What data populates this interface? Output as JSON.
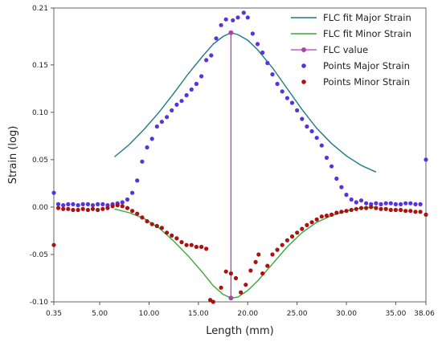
{
  "chart_data": {
    "type": "line",
    "title": "",
    "xlabel": "Length (mm)",
    "ylabel": "Strain (log)",
    "xlim": [
      0.35,
      38.06
    ],
    "ylim": [
      -0.1,
      0.21
    ],
    "grid": false,
    "legend_position": "top-right",
    "x_ticks": [
      {
        "value": 0.35,
        "label": "0.35"
      },
      {
        "value": 5,
        "label": "5.00"
      },
      {
        "value": 10,
        "label": "10.00"
      },
      {
        "value": 15,
        "label": "15.00"
      },
      {
        "value": 20,
        "label": "20.00"
      },
      {
        "value": 25,
        "label": "25.00"
      },
      {
        "value": 30,
        "label": "30.00"
      },
      {
        "value": 35,
        "label": "35.00"
      },
      {
        "value": 38.06,
        "label": "38.06"
      }
    ],
    "y_ticks": [
      {
        "value": 0.21,
        "label": "0.21"
      },
      {
        "value": 0.15,
        "label": "0.15"
      },
      {
        "value": 0.1,
        "label": "0.10"
      },
      {
        "value": 0.05,
        "label": "0.05"
      },
      {
        "value": 0.0,
        "label": "0.00"
      },
      {
        "value": -0.05,
        "label": "-0.05"
      },
      {
        "value": -0.1,
        "label": "-0.10"
      }
    ],
    "series": [
      {
        "name": "FLC fit Major Strain",
        "kind": "line",
        "color": "#1f7a86",
        "points": [
          [
            6.5,
            0.053
          ],
          [
            8.0,
            0.066
          ],
          [
            9.5,
            0.082
          ],
          [
            11.0,
            0.1
          ],
          [
            12.5,
            0.12
          ],
          [
            14.0,
            0.141
          ],
          [
            15.5,
            0.16
          ],
          [
            16.5,
            0.172
          ],
          [
            17.5,
            0.18
          ],
          [
            18.3,
            0.184
          ],
          [
            19.0,
            0.182
          ],
          [
            20.0,
            0.176
          ],
          [
            21.0,
            0.166
          ],
          [
            22.5,
            0.147
          ],
          [
            24.0,
            0.125
          ],
          [
            25.5,
            0.103
          ],
          [
            27.0,
            0.083
          ],
          [
            28.5,
            0.067
          ],
          [
            30.0,
            0.054
          ],
          [
            31.5,
            0.044
          ],
          [
            33.0,
            0.037
          ]
        ]
      },
      {
        "name": "FLC fit Minor Strain",
        "kind": "line",
        "color": "#3aa83a",
        "points": [
          [
            6.5,
            -0.002
          ],
          [
            8.0,
            -0.006
          ],
          [
            9.5,
            -0.012
          ],
          [
            11.0,
            -0.022
          ],
          [
            12.5,
            -0.036
          ],
          [
            14.0,
            -0.052
          ],
          [
            15.5,
            -0.07
          ],
          [
            16.5,
            -0.083
          ],
          [
            17.5,
            -0.092
          ],
          [
            18.3,
            -0.096
          ],
          [
            19.0,
            -0.095
          ],
          [
            20.0,
            -0.088
          ],
          [
            21.0,
            -0.078
          ],
          [
            22.5,
            -0.06
          ],
          [
            24.0,
            -0.042
          ],
          [
            25.5,
            -0.027
          ],
          [
            27.0,
            -0.016
          ],
          [
            28.5,
            -0.009
          ],
          [
            30.0,
            -0.004
          ],
          [
            31.5,
            -0.001
          ],
          [
            33.0,
            0.0
          ]
        ]
      },
      {
        "name": "FLC value",
        "kind": "vline",
        "color": "#b040b0",
        "x": 18.3,
        "y_top": 0.184,
        "y_bottom": -0.096
      },
      {
        "name": "Points Major Strain",
        "kind": "scatter",
        "color": "#5533dd",
        "points": [
          [
            0.35,
            0.015
          ],
          [
            0.8,
            0.003
          ],
          [
            1.3,
            0.002
          ],
          [
            1.8,
            0.003
          ],
          [
            2.3,
            0.003
          ],
          [
            2.8,
            0.002
          ],
          [
            3.3,
            0.003
          ],
          [
            3.8,
            0.003
          ],
          [
            4.3,
            0.002
          ],
          [
            4.8,
            0.003
          ],
          [
            5.3,
            0.003
          ],
          [
            5.8,
            0.002
          ],
          [
            6.3,
            0.003
          ],
          [
            6.8,
            0.004
          ],
          [
            7.3,
            0.005
          ],
          [
            7.8,
            0.008
          ],
          [
            8.3,
            0.015
          ],
          [
            8.8,
            0.028
          ],
          [
            9.3,
            0.048
          ],
          [
            9.8,
            0.063
          ],
          [
            10.3,
            0.072
          ],
          [
            10.8,
            0.085
          ],
          [
            11.3,
            0.09
          ],
          [
            11.8,
            0.095
          ],
          [
            12.3,
            0.102
          ],
          [
            12.8,
            0.108
          ],
          [
            13.3,
            0.112
          ],
          [
            13.8,
            0.118
          ],
          [
            14.3,
            0.124
          ],
          [
            14.8,
            0.13
          ],
          [
            15.3,
            0.138
          ],
          [
            15.8,
            0.155
          ],
          [
            16.3,
            0.16
          ],
          [
            16.8,
            0.178
          ],
          [
            17.3,
            0.192
          ],
          [
            17.8,
            0.198
          ],
          [
            18.5,
            0.197
          ],
          [
            19.0,
            0.2
          ],
          [
            19.6,
            0.205
          ],
          [
            20.0,
            0.2
          ],
          [
            20.5,
            0.183
          ],
          [
            21.0,
            0.172
          ],
          [
            21.5,
            0.163
          ],
          [
            22.0,
            0.152
          ],
          [
            22.5,
            0.14
          ],
          [
            23.0,
            0.13
          ],
          [
            23.5,
            0.122
          ],
          [
            24.0,
            0.115
          ],
          [
            24.5,
            0.11
          ],
          [
            25.0,
            0.102
          ],
          [
            25.5,
            0.093
          ],
          [
            26.0,
            0.085
          ],
          [
            26.5,
            0.08
          ],
          [
            27.0,
            0.073
          ],
          [
            27.5,
            0.065
          ],
          [
            28.0,
            0.052
          ],
          [
            28.5,
            0.043
          ],
          [
            29.0,
            0.03
          ],
          [
            29.5,
            0.021
          ],
          [
            30.0,
            0.013
          ],
          [
            30.5,
            0.008
          ],
          [
            31.0,
            0.005
          ],
          [
            31.5,
            0.007
          ],
          [
            32.0,
            0.004
          ],
          [
            32.5,
            0.003
          ],
          [
            33.0,
            0.004
          ],
          [
            33.5,
            0.003
          ],
          [
            34.0,
            0.004
          ],
          [
            34.5,
            0.004
          ],
          [
            35.0,
            0.003
          ],
          [
            35.5,
            0.003
          ],
          [
            36.0,
            0.004
          ],
          [
            36.5,
            0.004
          ],
          [
            37.0,
            0.003
          ],
          [
            37.5,
            0.003
          ],
          [
            38.06,
            0.05
          ]
        ]
      },
      {
        "name": "Points Minor Strain",
        "kind": "scatter",
        "color": "#aa1111",
        "points": [
          [
            0.35,
            -0.04
          ],
          [
            0.8,
            -0.001
          ],
          [
            1.3,
            -0.002
          ],
          [
            1.8,
            -0.002
          ],
          [
            2.3,
            -0.003
          ],
          [
            2.8,
            -0.003
          ],
          [
            3.3,
            -0.002
          ],
          [
            3.8,
            -0.003
          ],
          [
            4.3,
            -0.002
          ],
          [
            4.8,
            -0.003
          ],
          [
            5.3,
            -0.002
          ],
          [
            5.8,
            -0.001
          ],
          [
            6.3,
            0.001
          ],
          [
            6.8,
            0.002
          ],
          [
            7.3,
            0.001
          ],
          [
            7.8,
            -0.001
          ],
          [
            8.3,
            -0.004
          ],
          [
            8.8,
            -0.007
          ],
          [
            9.3,
            -0.011
          ],
          [
            9.8,
            -0.015
          ],
          [
            10.3,
            -0.018
          ],
          [
            10.8,
            -0.02
          ],
          [
            11.3,
            -0.022
          ],
          [
            11.8,
            -0.027
          ],
          [
            12.3,
            -0.03
          ],
          [
            12.8,
            -0.033
          ],
          [
            13.3,
            -0.037
          ],
          [
            13.8,
            -0.04
          ],
          [
            14.3,
            -0.04
          ],
          [
            14.8,
            -0.042
          ],
          [
            15.3,
            -0.042
          ],
          [
            15.8,
            -0.044
          ],
          [
            16.2,
            -0.098
          ],
          [
            16.5,
            -0.1
          ],
          [
            17.3,
            -0.085
          ],
          [
            17.8,
            -0.068
          ],
          [
            18.3,
            -0.07
          ],
          [
            18.8,
            -0.075
          ],
          [
            19.3,
            -0.09
          ],
          [
            19.8,
            -0.082
          ],
          [
            20.3,
            -0.067
          ],
          [
            20.8,
            -0.058
          ],
          [
            21.1,
            -0.05
          ],
          [
            21.5,
            -0.07
          ],
          [
            22.0,
            -0.062
          ],
          [
            22.5,
            -0.05
          ],
          [
            23.0,
            -0.045
          ],
          [
            23.5,
            -0.04
          ],
          [
            24.0,
            -0.035
          ],
          [
            24.5,
            -0.031
          ],
          [
            25.0,
            -0.027
          ],
          [
            25.5,
            -0.023
          ],
          [
            26.0,
            -0.019
          ],
          [
            26.5,
            -0.016
          ],
          [
            27.0,
            -0.013
          ],
          [
            27.5,
            -0.01
          ],
          [
            28.0,
            -0.009
          ],
          [
            28.5,
            -0.008
          ],
          [
            29.0,
            -0.006
          ],
          [
            29.5,
            -0.005
          ],
          [
            30.0,
            -0.004
          ],
          [
            30.5,
            -0.003
          ],
          [
            31.0,
            -0.002
          ],
          [
            31.5,
            -0.001
          ],
          [
            32.0,
            -0.001
          ],
          [
            32.5,
            0.0
          ],
          [
            33.0,
            -0.001
          ],
          [
            33.5,
            -0.002
          ],
          [
            34.0,
            -0.002
          ],
          [
            34.5,
            -0.003
          ],
          [
            35.0,
            -0.003
          ],
          [
            35.5,
            -0.003
          ],
          [
            36.0,
            -0.004
          ],
          [
            36.5,
            -0.004
          ],
          [
            37.0,
            -0.005
          ],
          [
            37.5,
            -0.005
          ],
          [
            38.06,
            -0.008
          ]
        ]
      }
    ]
  }
}
